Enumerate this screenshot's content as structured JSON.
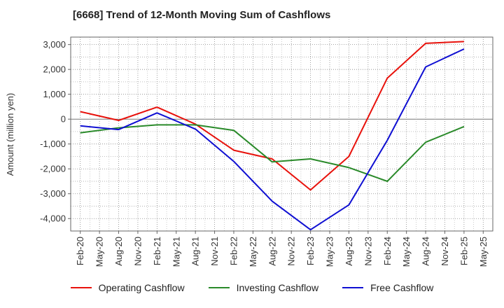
{
  "chart_data": {
    "type": "line",
    "title": "[6668]  Trend of 12-Month Moving Sum of Cashflows",
    "xlabel": "",
    "ylabel": "Amount (million yen)",
    "ylim": [
      -4500,
      3300
    ],
    "yticks": [
      3000,
      2000,
      1000,
      0,
      -1000,
      -2000,
      -3000,
      -4000
    ],
    "ytick_labels": [
      "3,000",
      "2,000",
      "1,000",
      "0",
      "-1,000",
      "-2,000",
      "-3,000",
      "-4,000"
    ],
    "categories": [
      "Feb-20",
      "May-20",
      "Aug-20",
      "Nov-20",
      "Feb-21",
      "May-21",
      "Aug-21",
      "Nov-21",
      "Feb-22",
      "May-22",
      "Aug-22",
      "Nov-22",
      "Feb-23",
      "May-23",
      "Aug-23",
      "Nov-23",
      "Feb-24",
      "May-24",
      "Aug-24",
      "Nov-24",
      "Feb-25",
      "May-25"
    ],
    "grid": true,
    "legend_position": "bottom",
    "series": [
      {
        "name": "Operating Cashflow",
        "color": "#e8120c",
        "x": [
          "Feb-20",
          "Aug-20",
          "Feb-21",
          "Aug-21",
          "Feb-22",
          "Aug-22",
          "Feb-23",
          "Aug-23",
          "Feb-24",
          "Aug-24",
          "Feb-25"
        ],
        "values": [
          300,
          -50,
          480,
          -200,
          -1250,
          -1600,
          -2850,
          -1500,
          1650,
          3050,
          3120
        ]
      },
      {
        "name": "Investing Cashflow",
        "color": "#2a8a2a",
        "x": [
          "Feb-20",
          "Aug-20",
          "Feb-21",
          "Aug-21",
          "Feb-22",
          "Aug-22",
          "Feb-23",
          "Aug-23",
          "Feb-24",
          "Aug-24",
          "Feb-25"
        ],
        "values": [
          -550,
          -350,
          -230,
          -230,
          -450,
          -1720,
          -1600,
          -1950,
          -2500,
          -930,
          -300
        ]
      },
      {
        "name": "Free Cashflow",
        "color": "#0f0fd2",
        "x": [
          "Feb-20",
          "Aug-20",
          "Feb-21",
          "Aug-21",
          "Feb-22",
          "Aug-22",
          "Feb-23",
          "Aug-23",
          "Feb-24",
          "Aug-24",
          "Feb-25"
        ],
        "values": [
          -270,
          -420,
          250,
          -400,
          -1700,
          -3300,
          -4450,
          -3450,
          -850,
          2100,
          2820
        ]
      }
    ]
  }
}
